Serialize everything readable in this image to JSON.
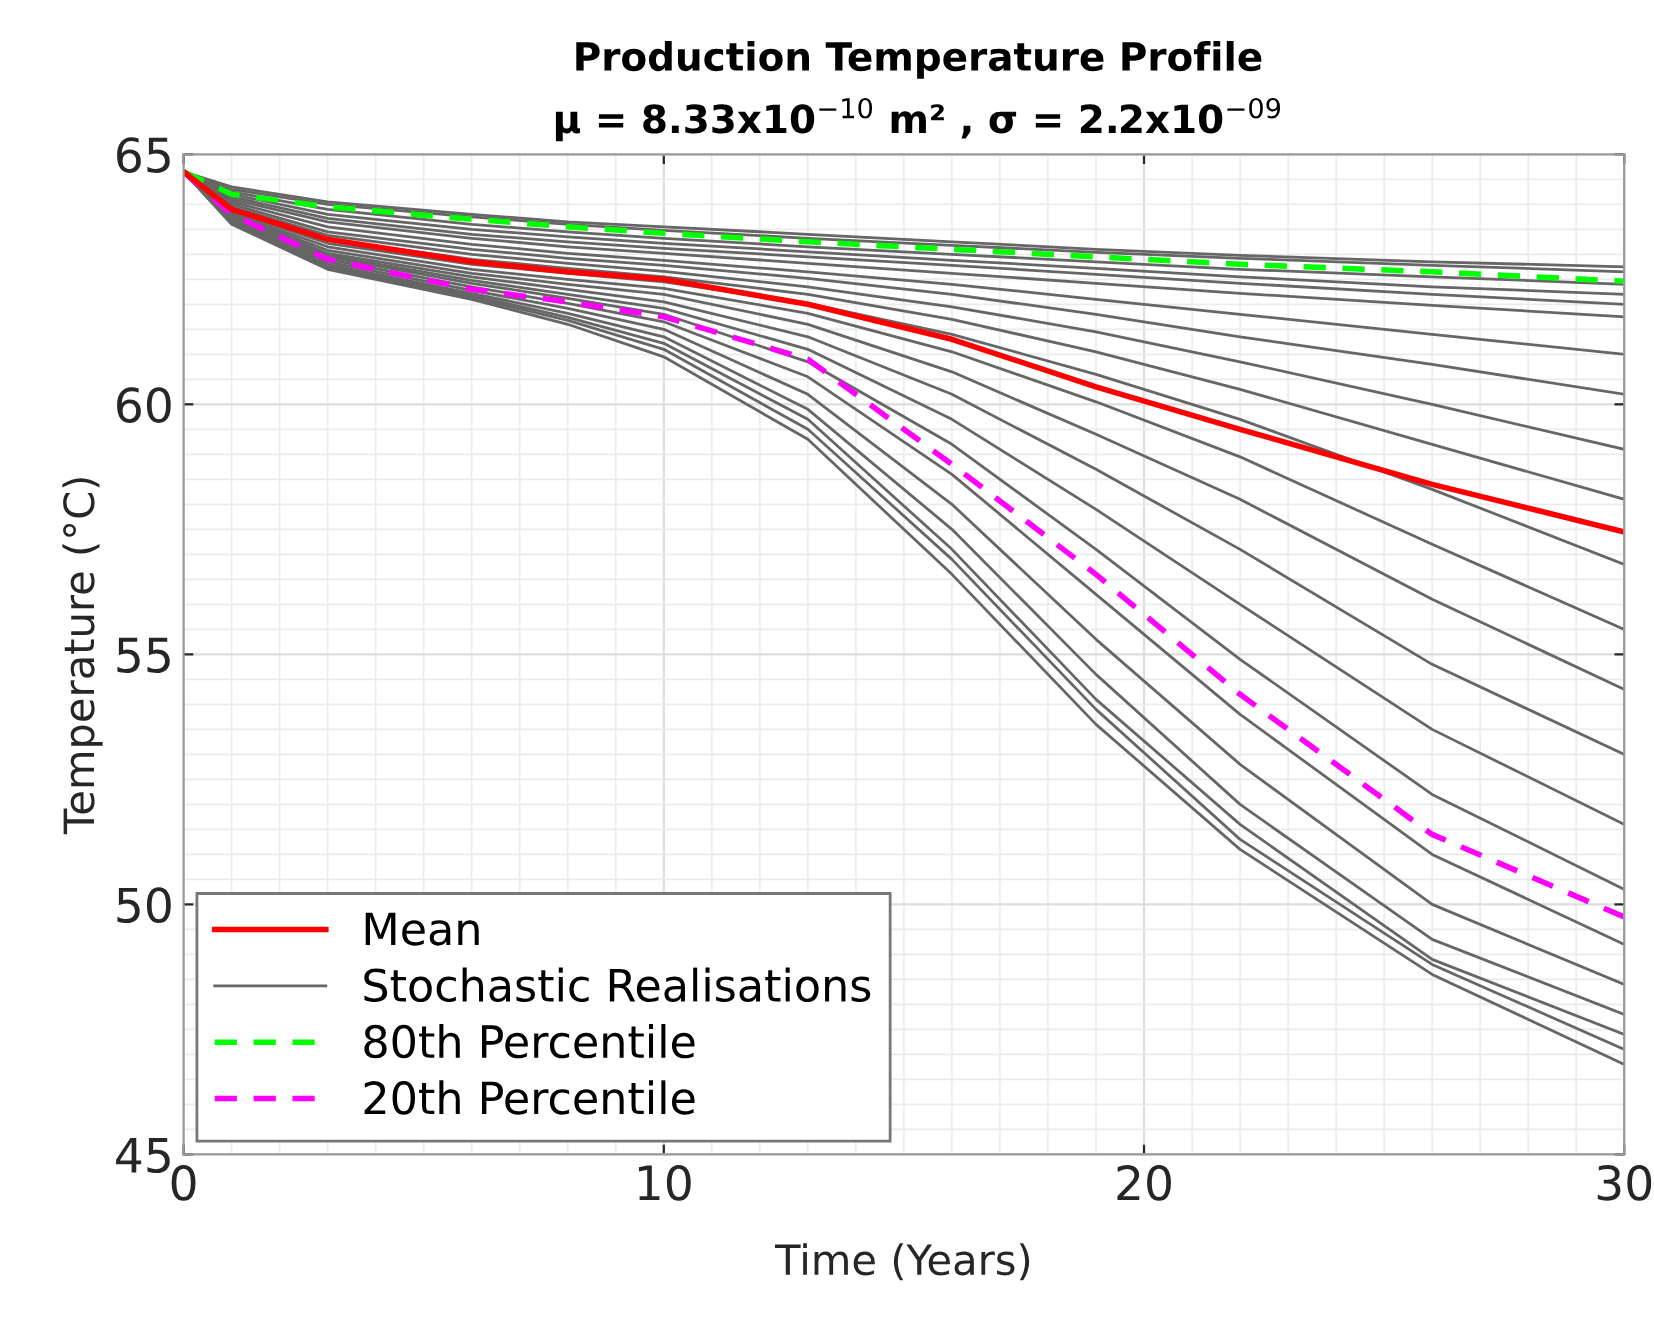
{
  "chart_data": {
    "type": "line",
    "title": "Production Temperature Profile",
    "subtitle": "μ = 8.33x10$^{−10}$ m² , σ = 2.2x10$^{−09}$",
    "xlabel": "Time (Years)",
    "ylabel": "Temperature (°C)",
    "x": [
      0,
      1,
      3,
      6,
      8,
      10,
      13,
      16,
      19,
      22,
      26,
      30
    ],
    "xlim": [
      0,
      30
    ],
    "xticks": [
      0,
      10,
      20,
      30
    ],
    "ylim": [
      45,
      65
    ],
    "yticks": [
      45,
      50,
      55,
      60,
      65
    ],
    "grid": true,
    "legend": "bottom left",
    "line_style": "solid",
    "marker": "none",
    "series": [
      {
        "name": "Stochastic Realisations",
        "color": "#666666",
        "values": [
          64.65,
          64.35,
          64.05,
          63.8,
          63.65,
          63.55,
          63.4,
          63.25,
          63.1,
          62.98,
          62.85,
          62.75
        ]
      },
      {
        "color": "#666666",
        "values": [
          64.65,
          64.3,
          64.0,
          63.75,
          63.6,
          63.48,
          63.32,
          63.18,
          63.04,
          62.92,
          62.78,
          62.65
        ]
      },
      {
        "color": "#666666",
        "values": [
          64.65,
          64.25,
          63.9,
          63.6,
          63.45,
          63.32,
          63.15,
          63.0,
          62.85,
          62.7,
          62.55,
          62.4
        ]
      },
      {
        "color": "#666666",
        "values": [
          64.65,
          64.2,
          63.8,
          63.5,
          63.35,
          63.22,
          63.05,
          62.88,
          62.72,
          62.55,
          62.35,
          62.2
        ]
      },
      {
        "color": "#666666",
        "values": [
          64.65,
          64.15,
          63.72,
          63.4,
          63.25,
          63.12,
          62.95,
          62.78,
          62.6,
          62.42,
          62.2,
          62.0
        ]
      },
      {
        "color": "#666666",
        "values": [
          64.65,
          64.1,
          63.65,
          63.32,
          63.15,
          63.02,
          62.82,
          62.62,
          62.42,
          62.22,
          61.98,
          61.75
        ]
      },
      {
        "color": "#666666",
        "values": [
          64.65,
          64.05,
          63.55,
          63.2,
          63.02,
          62.88,
          62.65,
          62.4,
          62.1,
          61.8,
          61.4,
          61.0
        ]
      },
      {
        "color": "#666666",
        "values": [
          64.65,
          64.0,
          63.45,
          63.1,
          62.92,
          62.78,
          62.52,
          62.2,
          61.8,
          61.35,
          60.8,
          60.2
        ]
      },
      {
        "color": "#666666",
        "values": [
          64.65,
          63.95,
          63.38,
          63.0,
          62.82,
          62.66,
          62.35,
          61.95,
          61.45,
          60.85,
          60.0,
          59.1
        ]
      },
      {
        "color": "#666666",
        "values": [
          64.65,
          63.9,
          63.3,
          62.9,
          62.72,
          62.55,
          62.2,
          61.7,
          61.05,
          60.3,
          59.2,
          58.1
        ]
      },
      {
        "color": "#666666",
        "values": [
          64.65,
          63.85,
          63.22,
          62.8,
          62.62,
          62.45,
          62.02,
          61.4,
          60.6,
          59.7,
          58.3,
          56.8
        ]
      },
      {
        "color": "#666666",
        "values": [
          64.65,
          63.82,
          63.15,
          62.7,
          62.5,
          62.32,
          61.82,
          61.05,
          60.05,
          58.95,
          57.2,
          55.5
        ]
      },
      {
        "color": "#666666",
        "values": [
          64.65,
          63.8,
          63.08,
          62.62,
          62.4,
          62.2,
          61.6,
          60.65,
          59.4,
          58.1,
          56.1,
          54.3
        ]
      },
      {
        "color": "#666666",
        "values": [
          64.65,
          63.78,
          63.02,
          62.55,
          62.3,
          62.05,
          61.35,
          60.2,
          58.7,
          57.1,
          54.8,
          53.0
        ]
      },
      {
        "color": "#666666",
        "values": [
          64.65,
          63.75,
          62.98,
          62.48,
          62.2,
          61.92,
          61.1,
          59.7,
          57.9,
          56.0,
          53.5,
          51.6
        ]
      },
      {
        "color": "#666666",
        "values": [
          64.65,
          63.72,
          62.95,
          62.42,
          62.12,
          61.8,
          60.85,
          59.2,
          57.1,
          54.9,
          52.2,
          50.3
        ]
      },
      {
        "color": "#666666",
        "values": [
          64.65,
          63.7,
          62.9,
          62.35,
          62.02,
          61.65,
          60.55,
          58.6,
          56.2,
          53.8,
          51.0,
          49.2
        ]
      },
      {
        "color": "#666666",
        "values": [
          64.65,
          63.68,
          62.85,
          62.28,
          61.92,
          61.5,
          60.2,
          58.0,
          55.3,
          52.8,
          50.0,
          48.4
        ]
      },
      {
        "color": "#666666",
        "values": [
          64.65,
          63.65,
          62.8,
          62.22,
          61.82,
          61.35,
          59.9,
          57.5,
          54.6,
          52.0,
          49.3,
          47.8
        ]
      },
      {
        "color": "#666666",
        "values": [
          64.65,
          63.63,
          62.76,
          62.18,
          61.74,
          61.22,
          59.7,
          57.1,
          54.1,
          51.6,
          48.9,
          47.4
        ]
      },
      {
        "color": "#666666",
        "values": [
          64.65,
          63.62,
          62.73,
          62.14,
          61.68,
          61.1,
          59.5,
          56.9,
          53.9,
          51.3,
          48.8,
          47.1
        ]
      },
      {
        "color": "#666666",
        "values": [
          64.65,
          63.6,
          62.7,
          62.1,
          61.6,
          60.95,
          59.3,
          56.6,
          53.6,
          51.1,
          48.6,
          46.8
        ]
      },
      {
        "name": "80th Percentile",
        "color": "#00ff00",
        "line_style": "dashed",
        "values": [
          64.65,
          64.2,
          63.95,
          63.7,
          63.55,
          63.42,
          63.25,
          63.1,
          62.95,
          62.8,
          62.65,
          62.46
        ]
      },
      {
        "name": "20th Percentile",
        "color": "#ff00ff",
        "line_style": "dashed",
        "values": [
          64.65,
          63.8,
          62.9,
          62.3,
          62.05,
          61.75,
          60.9,
          58.8,
          56.6,
          54.2,
          51.4,
          49.75
        ]
      },
      {
        "name": "Mean",
        "color": "#ff0000",
        "values": [
          64.65,
          63.9,
          63.3,
          62.85,
          62.65,
          62.5,
          62.0,
          61.3,
          60.35,
          59.5,
          58.4,
          57.45
        ]
      }
    ]
  }
}
